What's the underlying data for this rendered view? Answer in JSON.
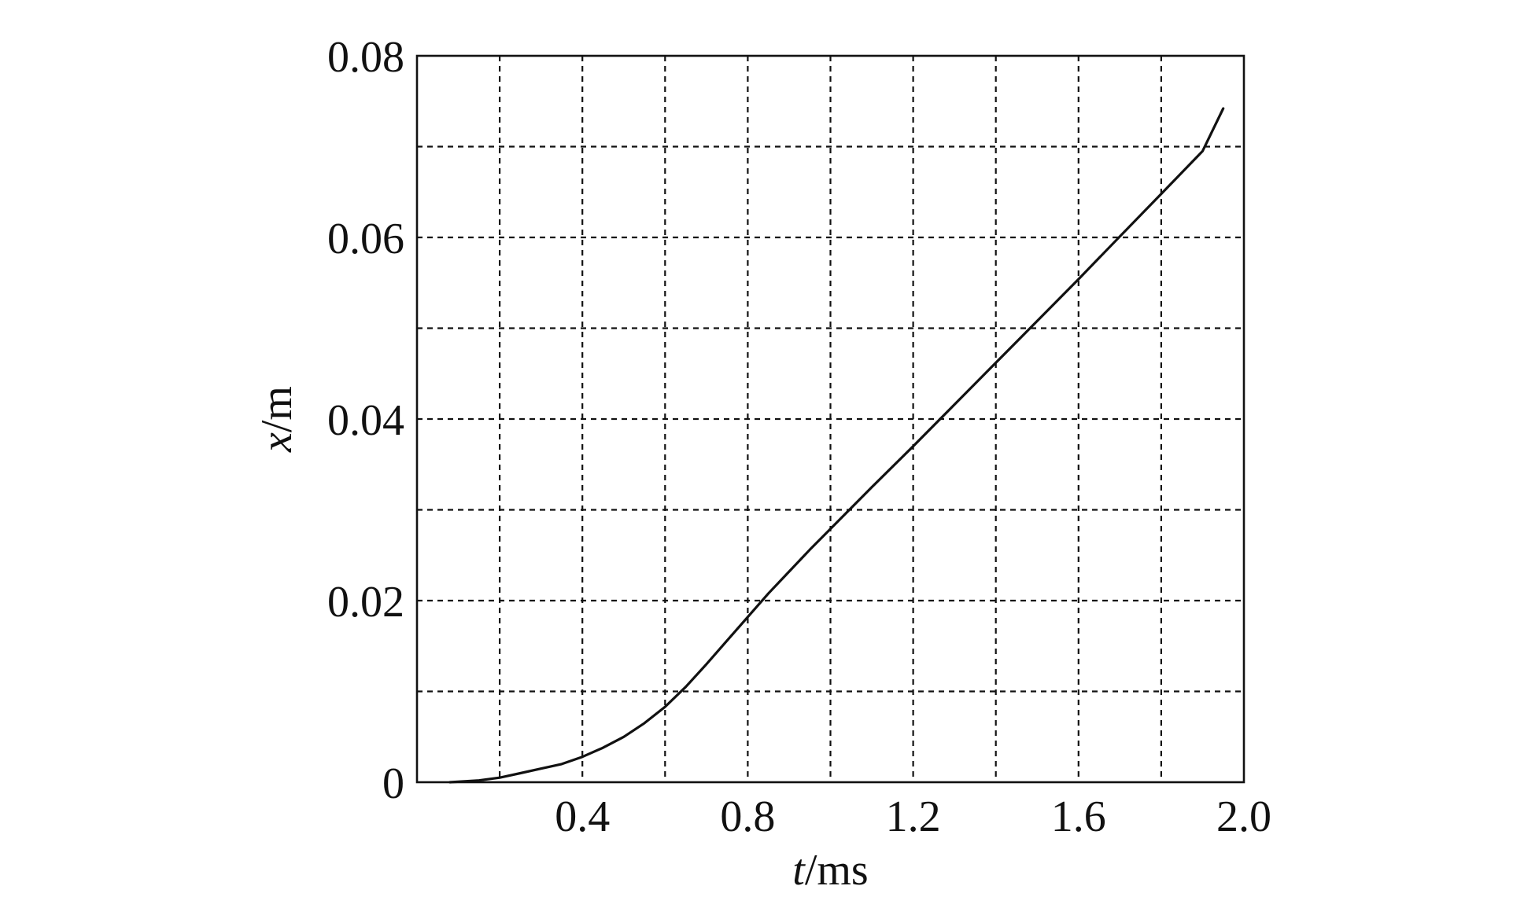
{
  "chart_data": {
    "type": "line",
    "title": "",
    "xlabel": {
      "var": "t",
      "unit": "/ms"
    },
    "ylabel": {
      "var": "x",
      "unit": "/m"
    },
    "xlim": [
      0,
      2.0
    ],
    "ylim": [
      0,
      0.08
    ],
    "grid": true,
    "x_gridlines": [
      0.2,
      0.4,
      0.6,
      0.8,
      1.0,
      1.2,
      1.4,
      1.6,
      1.8
    ],
    "y_gridlines": [
      0.01,
      0.02,
      0.03,
      0.04,
      0.05,
      0.06,
      0.07
    ],
    "x_ticks": [
      {
        "value": 0.4,
        "label": "0.4"
      },
      {
        "value": 0.8,
        "label": "0.8"
      },
      {
        "value": 1.2,
        "label": "1.2"
      },
      {
        "value": 1.6,
        "label": "1.6"
      },
      {
        "value": 2.0,
        "label": "2.0"
      }
    ],
    "y_ticks": [
      {
        "value": 0,
        "label": "0"
      },
      {
        "value": 0.02,
        "label": "0.02"
      },
      {
        "value": 0.04,
        "label": "0.04"
      },
      {
        "value": 0.06,
        "label": "0.06"
      },
      {
        "value": 0.08,
        "label": "0.08"
      }
    ],
    "series": [
      {
        "x": [
          0.08,
          0.15,
          0.2,
          0.25,
          0.3,
          0.35,
          0.4,
          0.45,
          0.5,
          0.55,
          0.6,
          0.65,
          0.7,
          0.75,
          0.8,
          0.85,
          0.9,
          0.95,
          1.0,
          1.1,
          1.2,
          1.3,
          1.4,
          1.5,
          1.6,
          1.7,
          1.8,
          1.9,
          1.95
        ],
        "y": [
          0.0,
          0.0002,
          0.0005,
          0.001,
          0.0015,
          0.002,
          0.0028,
          0.0038,
          0.005,
          0.0065,
          0.0083,
          0.0105,
          0.013,
          0.0156,
          0.0182,
          0.0208,
          0.0232,
          0.0256,
          0.0279,
          0.0325,
          0.037,
          0.0416,
          0.0462,
          0.0508,
          0.0554,
          0.0601,
          0.0648,
          0.0695,
          0.0742
        ]
      }
    ]
  }
}
